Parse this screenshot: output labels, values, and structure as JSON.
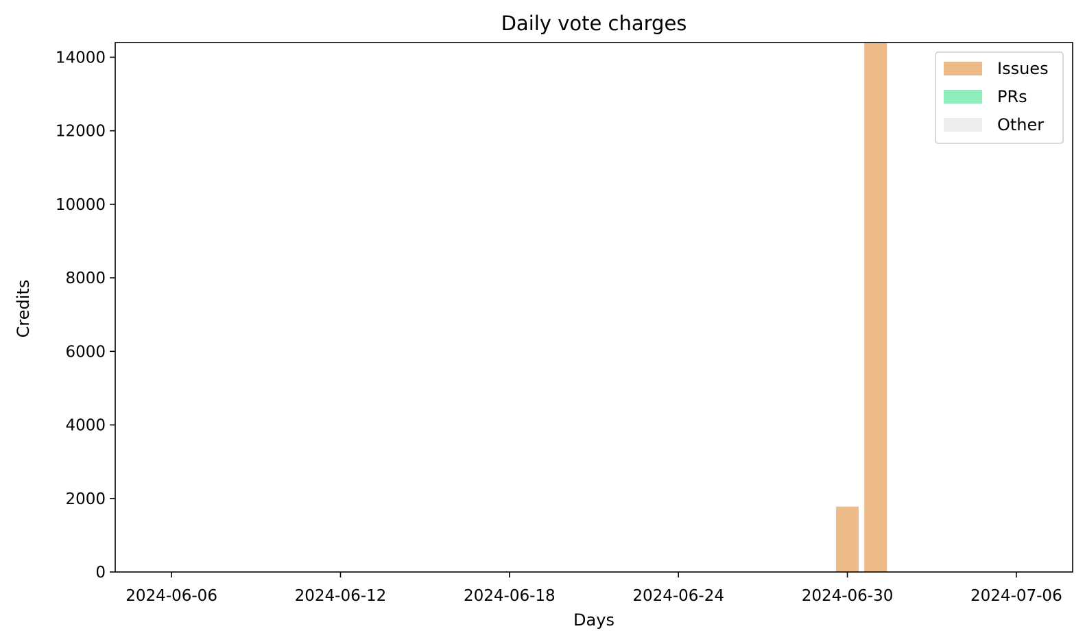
{
  "chart_data": {
    "type": "bar",
    "stacked": true,
    "title": "Daily vote charges",
    "xlabel": "Days",
    "ylabel": "Credits",
    "x_axis": {
      "type": "date",
      "range": [
        "2024-06-04",
        "2024-07-08"
      ],
      "ticks": [
        "2024-06-06",
        "2024-06-12",
        "2024-06-18",
        "2024-06-24",
        "2024-06-30",
        "2024-07-06"
      ]
    },
    "ylim": [
      0,
      14400
    ],
    "yticks": [
      0,
      2000,
      4000,
      6000,
      8000,
      10000,
      12000,
      14000
    ],
    "categories": [
      "2024-06-30",
      "2024-07-01"
    ],
    "series": [
      {
        "name": "Issues",
        "color": "#edbb8a",
        "values": [
          1780,
          14400
        ]
      },
      {
        "name": "PRs",
        "color": "#8eeebb",
        "values": [
          0,
          0
        ]
      },
      {
        "name": "Other",
        "color": "#eeeeee",
        "values": [
          0,
          0
        ]
      }
    ],
    "legend": {
      "position": "top-right"
    },
    "grid": false
  }
}
